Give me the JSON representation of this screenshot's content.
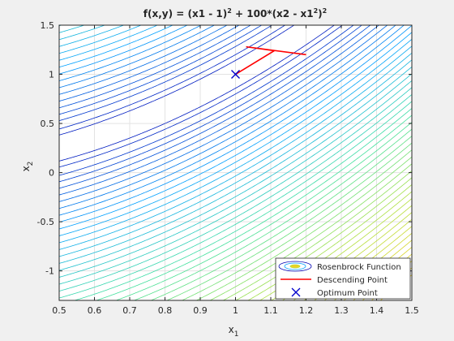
{
  "figure": {
    "background": "#f0f0f0",
    "axes_background": "#ffffff",
    "title": {
      "main": "f(x,y) = (x1 - 1)",
      "sup1": "2",
      "mid": " + 100*(x2 - x1",
      "sup2": "2",
      "close": ")",
      "sup3": "2"
    },
    "xlabel": {
      "base": "x",
      "sub": "1"
    },
    "ylabel": {
      "base": "x",
      "sub": "2"
    },
    "xlim": [
      0.5,
      1.5
    ],
    "ylim": [
      -1.3,
      1.5
    ],
    "xticks": [
      "0.5",
      "0.6",
      "0.7",
      "0.8",
      "0.9",
      "1",
      "1.1",
      "1.2",
      "1.3",
      "1.4",
      "1.5"
    ],
    "yticks": [
      "-1",
      "-0.5",
      "0",
      "0.5",
      "1",
      "1.5"
    ],
    "legend": {
      "placement": "bottom-right",
      "entries": [
        {
          "label": "Rosenbrock Function",
          "kind": "contour"
        },
        {
          "label": "Descending Point",
          "kind": "line",
          "color": "#ff0000"
        },
        {
          "label": "Optimum Point",
          "kind": "marker",
          "color": "#0000cc"
        }
      ]
    }
  },
  "chart_data": {
    "type": "contour",
    "title": "f(x,y) = (x1 - 1)^2 + 100*(x2 - x1^2)^2",
    "xlabel": "x1",
    "ylabel": "x2",
    "xlim": [
      0.5,
      1.5
    ],
    "ylim": [
      -1.3,
      1.5
    ],
    "grid": true,
    "legend_placement": "bottom-right",
    "function": "(x1 - 1)^2 + 100*(x2 - x1^2)^2",
    "contour_levels": [
      2,
      4,
      8,
      12,
      17,
      23,
      30,
      38,
      47,
      57,
      68,
      80,
      93,
      107,
      122,
      138,
      155,
      173,
      192,
      212,
      233,
      255,
      278,
      302,
      327,
      353,
      380,
      408,
      437,
      467,
      498,
      530,
      563,
      597,
      632,
      668,
      705,
      743,
      782,
      822,
      863,
      905,
      948,
      992,
      1037,
      1083
    ],
    "colormap": [
      "#0000b4",
      "#00a0ff",
      "#40e0a0",
      "#b0e040",
      "#f0d020"
    ],
    "series": [
      {
        "name": "Descending Point",
        "type": "line",
        "color": "#ff0000",
        "x": [
          1.2,
          1.03,
          1.11,
          1.0
        ],
        "y": [
          1.2,
          1.28,
          1.24,
          1.0
        ]
      },
      {
        "name": "Optimum Point",
        "type": "marker",
        "marker": "x",
        "color": "#0000cc",
        "x": [
          1
        ],
        "y": [
          1
        ]
      }
    ]
  }
}
